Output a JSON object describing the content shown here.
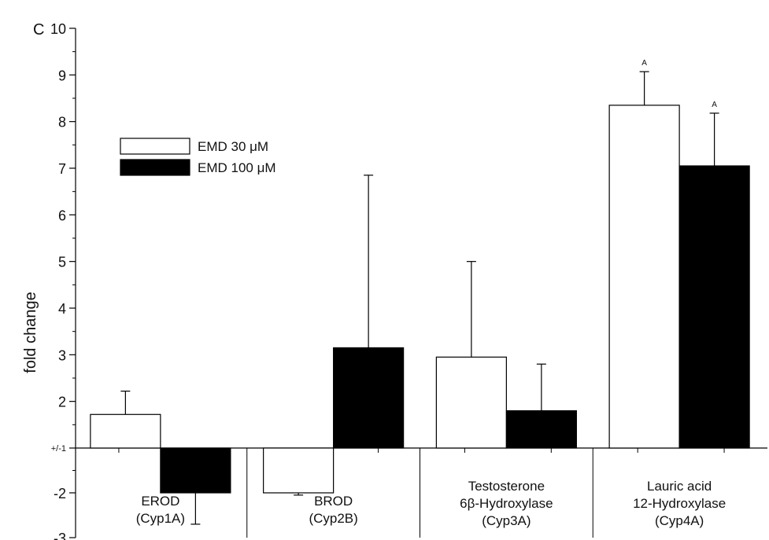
{
  "chart_data": {
    "type": "bar",
    "panel_label": "C",
    "ylabel": "fold change",
    "ylim": [
      -3,
      10
    ],
    "baseline_label": "+/-1",
    "y_ticks": [
      {
        "value": 10,
        "label": "10"
      },
      {
        "value": 9,
        "label": "9"
      },
      {
        "value": 8,
        "label": "8"
      },
      {
        "value": 7,
        "label": "7"
      },
      {
        "value": 6,
        "label": "6"
      },
      {
        "value": 5,
        "label": "5"
      },
      {
        "value": 4,
        "label": "4"
      },
      {
        "value": 3,
        "label": "3"
      },
      {
        "value": 2,
        "label": "2"
      },
      {
        "value": 1,
        "label": "+/-1"
      },
      {
        "value": -2,
        "label": "-2"
      },
      {
        "value": -3,
        "label": "-3"
      }
    ],
    "categories": [
      {
        "lines": [
          "EROD",
          "(Cyp1A)"
        ]
      },
      {
        "lines": [
          "BROD",
          "(Cyp2B)"
        ]
      },
      {
        "lines": [
          "Testosterone",
          "6β-Hydroxylase",
          "(Cyp3A)"
        ]
      },
      {
        "lines": [
          "Lauric acid",
          "12-Hydroxylase",
          "(Cyp4A)"
        ]
      }
    ],
    "series": [
      {
        "name": "EMD 30 μM",
        "color": "#ffffff",
        "values": [
          1.72,
          -2.0,
          2.95,
          8.35
        ],
        "errors": [
          0.5,
          0.05,
          2.05,
          0.72
        ],
        "annotations": [
          "",
          "",
          "",
          "A"
        ]
      },
      {
        "name": "EMD 100 μM",
        "color": "#000000",
        "values": [
          -2.0,
          3.15,
          1.8,
          7.05
        ],
        "errors": [
          0.7,
          3.7,
          1.0,
          1.13
        ],
        "annotations": [
          "",
          "",
          "",
          "A"
        ]
      }
    ],
    "legend_position": "top-left"
  }
}
